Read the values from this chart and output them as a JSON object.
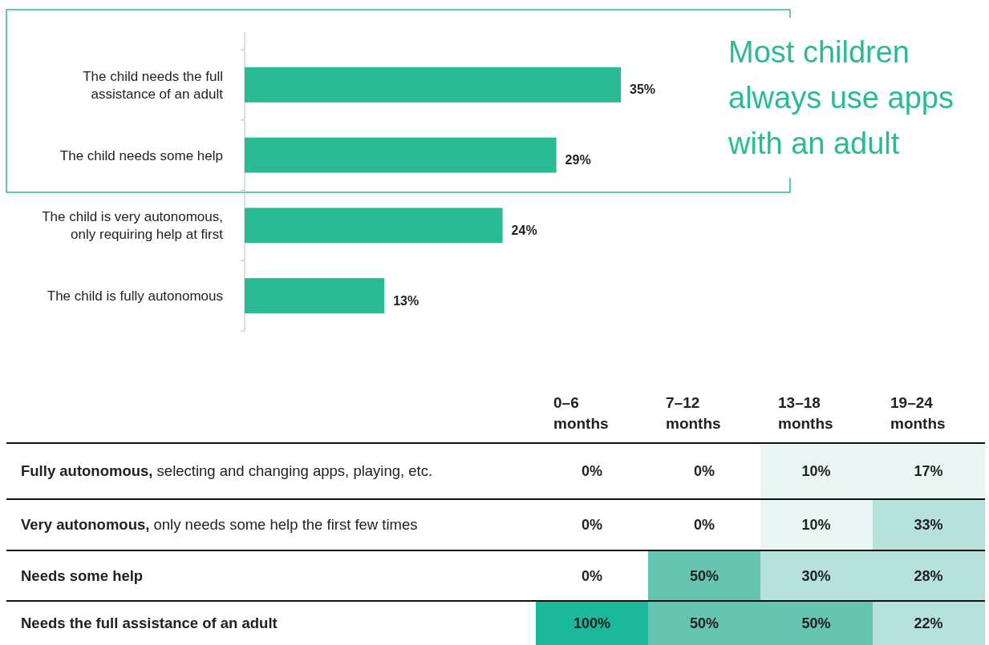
{
  "chart_data": [
    {
      "type": "bar",
      "orientation": "horizontal",
      "annotations": [
        "Most children always use apps with an adult"
      ],
      "categories": [
        "The child needs the full assistance of an adult",
        "The child needs some help",
        "The child is very autonomous, only requiring help at first",
        "The child is fully autonomous"
      ],
      "values": [
        35,
        29,
        24,
        13
      ],
      "color": "#2bbb94",
      "data_labels": true,
      "value_labels": [
        "35%",
        "29%",
        "24%",
        "13%"
      ]
    },
    {
      "type": "heatmap",
      "categories": [
        "0–6 months",
        "7–12 months",
        "13–18 months",
        "19–24 months"
      ],
      "y_categories": [
        "Fully autonomous, selecting and changing apps, playing, etc.",
        "Very autonomous, only needs some help the first few times",
        "Needs some help",
        "Needs the full assistance of an adult"
      ],
      "cells": [
        [
          0,
          0,
          10,
          17
        ],
        [
          0,
          0,
          10,
          33
        ],
        [
          0,
          50,
          30,
          28
        ],
        [
          100,
          50,
          50,
          22
        ]
      ],
      "cell_labels": [
        [
          "0%",
          "0%",
          "10%",
          "17%"
        ],
        [
          "0%",
          "0%",
          "10%",
          "33%"
        ],
        [
          "0%",
          "50%",
          "30%",
          "28%"
        ],
        [
          "100%",
          "50%",
          "50%",
          "22%"
        ]
      ]
    }
  ]
}
